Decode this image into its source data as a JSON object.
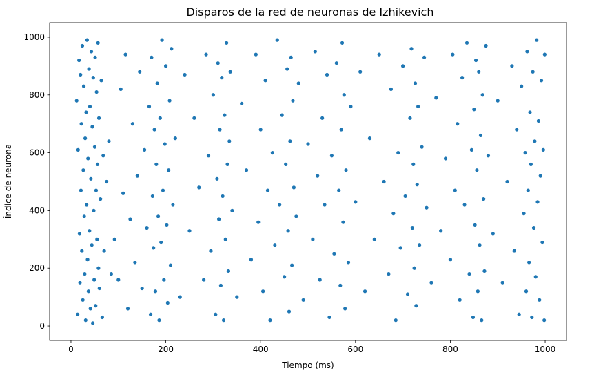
{
  "chart_data": {
    "type": "scatter",
    "title": "Disparos de la red de neuronas de Izhikevich",
    "xlabel": "Tiempo (ms)",
    "ylabel": "Índice de neurona",
    "xlim": [
      -45,
      1045
    ],
    "ylim": [
      -50,
      1050
    ],
    "xticks": [
      0,
      200,
      400,
      600,
      800,
      1000
    ],
    "yticks": [
      0,
      200,
      400,
      600,
      800,
      1000
    ],
    "xtick_labels": [
      "0",
      "200",
      "400",
      "600",
      "800",
      "1000"
    ],
    "ytick_labels": [
      "0",
      "200",
      "400",
      "600",
      "800",
      "1000"
    ],
    "grid": false,
    "legend": "none",
    "marker_color": "#1f77b4",
    "series": [
      {
        "points": [
          [
            12,
            780
          ],
          [
            14,
            40
          ],
          [
            15,
            610
          ],
          [
            17,
            920
          ],
          [
            18,
            320
          ],
          [
            19,
            150
          ],
          [
            20,
            870
          ],
          [
            21,
            470
          ],
          [
            22,
            700
          ],
          [
            23,
            260
          ],
          [
            24,
            970
          ],
          [
            25,
            90
          ],
          [
            26,
            540
          ],
          [
            27,
            830
          ],
          [
            28,
            380
          ],
          [
            29,
            180
          ],
          [
            30,
            650
          ],
          [
            31,
            20
          ],
          [
            32,
            740
          ],
          [
            33,
            420
          ],
          [
            34,
            990
          ],
          [
            35,
            230
          ],
          [
            36,
            580
          ],
          [
            37,
            120
          ],
          [
            38,
            890
          ],
          [
            39,
            330
          ],
          [
            40,
            760
          ],
          [
            41,
            60
          ],
          [
            42,
            510
          ],
          [
            43,
            950
          ],
          [
            44,
            280
          ],
          [
            45,
            690
          ],
          [
            46,
            10
          ],
          [
            47,
            860
          ],
          [
            48,
            400
          ],
          [
            49,
            160
          ],
          [
            50,
            620
          ],
          [
            51,
            930
          ],
          [
            52,
            70
          ],
          [
            53,
            470
          ],
          [
            54,
            810
          ],
          [
            55,
            300
          ],
          [
            56,
            560
          ],
          [
            57,
            980
          ],
          [
            58,
            200
          ],
          [
            59,
            720
          ],
          [
            60,
            130
          ],
          [
            62,
            440
          ],
          [
            64,
            850
          ],
          [
            66,
            30
          ],
          [
            68,
            590
          ],
          [
            70,
            260
          ],
          [
            75,
            500
          ],
          [
            80,
            640
          ],
          [
            85,
            180
          ],
          [
            92,
            300
          ],
          [
            100,
            160
          ],
          [
            105,
            820
          ],
          [
            110,
            460
          ],
          [
            115,
            940
          ],
          [
            120,
            60
          ],
          [
            125,
            370
          ],
          [
            130,
            700
          ],
          [
            135,
            220
          ],
          [
            140,
            520
          ],
          [
            145,
            880
          ],
          [
            150,
            130
          ],
          [
            155,
            610
          ],
          [
            160,
            340
          ],
          [
            165,
            760
          ],
          [
            168,
            40
          ],
          [
            170,
            930
          ],
          [
            172,
            450
          ],
          [
            174,
            270
          ],
          [
            176,
            680
          ],
          [
            178,
            120
          ],
          [
            180,
            560
          ],
          [
            182,
            840
          ],
          [
            184,
            380
          ],
          [
            186,
            20
          ],
          [
            188,
            720
          ],
          [
            190,
            290
          ],
          [
            192,
            990
          ],
          [
            194,
            470
          ],
          [
            196,
            160
          ],
          [
            198,
            630
          ],
          [
            200,
            900
          ],
          [
            202,
            350
          ],
          [
            204,
            80
          ],
          [
            206,
            540
          ],
          [
            208,
            780
          ],
          [
            210,
            210
          ],
          [
            212,
            960
          ],
          [
            215,
            420
          ],
          [
            220,
            650
          ],
          [
            230,
            100
          ],
          [
            240,
            870
          ],
          [
            250,
            330
          ],
          [
            260,
            720
          ],
          [
            270,
            480
          ],
          [
            280,
            160
          ],
          [
            285,
            940
          ],
          [
            290,
            590
          ],
          [
            295,
            260
          ],
          [
            300,
            800
          ],
          [
            305,
            40
          ],
          [
            308,
            510
          ],
          [
            310,
            910
          ],
          [
            312,
            370
          ],
          [
            314,
            680
          ],
          [
            316,
            140
          ],
          [
            318,
            860
          ],
          [
            320,
            450
          ],
          [
            322,
            20
          ],
          [
            324,
            730
          ],
          [
            326,
            300
          ],
          [
            328,
            980
          ],
          [
            330,
            560
          ],
          [
            332,
            190
          ],
          [
            334,
            640
          ],
          [
            336,
            880
          ],
          [
            340,
            400
          ],
          [
            350,
            100
          ],
          [
            360,
            770
          ],
          [
            370,
            540
          ],
          [
            380,
            230
          ],
          [
            390,
            940
          ],
          [
            395,
            360
          ],
          [
            400,
            680
          ],
          [
            405,
            120
          ],
          [
            410,
            850
          ],
          [
            415,
            470
          ],
          [
            420,
            20
          ],
          [
            425,
            600
          ],
          [
            430,
            280
          ],
          [
            435,
            990
          ],
          [
            440,
            420
          ],
          [
            445,
            730
          ],
          [
            450,
            170
          ],
          [
            453,
            560
          ],
          [
            456,
            890
          ],
          [
            458,
            330
          ],
          [
            460,
            50
          ],
          [
            462,
            640
          ],
          [
            464,
            930
          ],
          [
            466,
            210
          ],
          [
            468,
            780
          ],
          [
            470,
            480
          ],
          [
            475,
            380
          ],
          [
            480,
            840
          ],
          [
            490,
            90
          ],
          [
            500,
            630
          ],
          [
            510,
            300
          ],
          [
            515,
            950
          ],
          [
            520,
            520
          ],
          [
            525,
            160
          ],
          [
            530,
            720
          ],
          [
            535,
            420
          ],
          [
            540,
            870
          ],
          [
            545,
            30
          ],
          [
            550,
            590
          ],
          [
            555,
            250
          ],
          [
            560,
            910
          ],
          [
            565,
            470
          ],
          [
            568,
            140
          ],
          [
            570,
            680
          ],
          [
            572,
            980
          ],
          [
            574,
            360
          ],
          [
            576,
            800
          ],
          [
            578,
            60
          ],
          [
            580,
            540
          ],
          [
            585,
            220
          ],
          [
            590,
            760
          ],
          [
            600,
            430
          ],
          [
            610,
            880
          ],
          [
            620,
            120
          ],
          [
            630,
            650
          ],
          [
            640,
            300
          ],
          [
            650,
            940
          ],
          [
            660,
            500
          ],
          [
            670,
            180
          ],
          [
            675,
            820
          ],
          [
            680,
            390
          ],
          [
            685,
            20
          ],
          [
            690,
            600
          ],
          [
            695,
            270
          ],
          [
            700,
            900
          ],
          [
            705,
            450
          ],
          [
            710,
            110
          ],
          [
            715,
            720
          ],
          [
            718,
            960
          ],
          [
            720,
            340
          ],
          [
            722,
            560
          ],
          [
            724,
            200
          ],
          [
            726,
            840
          ],
          [
            728,
            70
          ],
          [
            730,
            490
          ],
          [
            732,
            760
          ],
          [
            735,
            280
          ],
          [
            740,
            620
          ],
          [
            745,
            930
          ],
          [
            750,
            410
          ],
          [
            760,
            150
          ],
          [
            770,
            790
          ],
          [
            780,
            330
          ],
          [
            790,
            580
          ],
          [
            800,
            230
          ],
          [
            805,
            940
          ],
          [
            810,
            470
          ],
          [
            815,
            700
          ],
          [
            820,
            90
          ],
          [
            825,
            860
          ],
          [
            830,
            420
          ],
          [
            835,
            980
          ],
          [
            840,
            180
          ],
          [
            845,
            610
          ],
          [
            848,
            30
          ],
          [
            850,
            750
          ],
          [
            852,
            350
          ],
          [
            854,
            920
          ],
          [
            856,
            540
          ],
          [
            858,
            120
          ],
          [
            860,
            880
          ],
          [
            862,
            280
          ],
          [
            864,
            660
          ],
          [
            866,
            20
          ],
          [
            868,
            800
          ],
          [
            870,
            440
          ],
          [
            872,
            190
          ],
          [
            875,
            970
          ],
          [
            880,
            590
          ],
          [
            890,
            320
          ],
          [
            900,
            780
          ],
          [
            910,
            150
          ],
          [
            920,
            500
          ],
          [
            930,
            900
          ],
          [
            935,
            260
          ],
          [
            940,
            680
          ],
          [
            945,
            40
          ],
          [
            950,
            830
          ],
          [
            955,
            390
          ],
          [
            958,
            600
          ],
          [
            960,
            120
          ],
          [
            962,
            950
          ],
          [
            964,
            470
          ],
          [
            966,
            220
          ],
          [
            968,
            740
          ],
          [
            970,
            560
          ],
          [
            972,
            30
          ],
          [
            974,
            880
          ],
          [
            976,
            340
          ],
          [
            978,
            640
          ],
          [
            980,
            170
          ],
          [
            982,
            990
          ],
          [
            984,
            430
          ],
          [
            986,
            710
          ],
          [
            988,
            90
          ],
          [
            990,
            520
          ],
          [
            992,
            850
          ],
          [
            994,
            290
          ],
          [
            996,
            610
          ],
          [
            998,
            20
          ],
          [
            999,
            940
          ]
        ]
      }
    ]
  }
}
